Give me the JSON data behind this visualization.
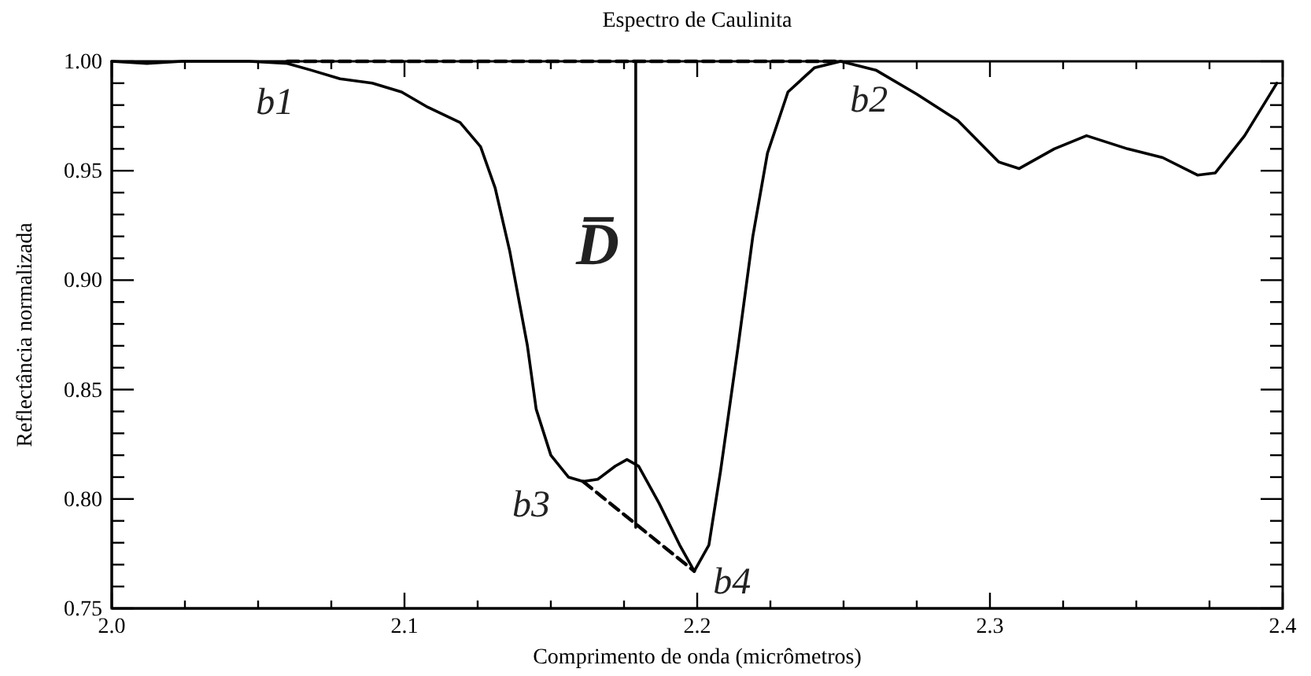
{
  "chart_data": {
    "type": "line",
    "title": "Espectro de Caulinita",
    "xlabel": "Comprimento de onda (micrômetros)",
    "ylabel": "Reflectância normalizada",
    "xlim": [
      2.0,
      2.4
    ],
    "ylim": [
      0.75,
      1.0
    ],
    "xticks": [
      {
        "value": 2.0,
        "label": "2.0"
      },
      {
        "value": 2.025,
        "label": null
      },
      {
        "value": 2.05,
        "label": null
      },
      {
        "value": 2.075,
        "label": null
      },
      {
        "value": 2.1,
        "label": "2.1"
      },
      {
        "value": 2.125,
        "label": null
      },
      {
        "value": 2.15,
        "label": null
      },
      {
        "value": 2.175,
        "label": null
      },
      {
        "value": 2.2,
        "label": "2.2"
      },
      {
        "value": 2.225,
        "label": null
      },
      {
        "value": 2.25,
        "label": null
      },
      {
        "value": 2.275,
        "label": null
      },
      {
        "value": 2.3,
        "label": "2.3"
      },
      {
        "value": 2.325,
        "label": null
      },
      {
        "value": 2.35,
        "label": null
      },
      {
        "value": 2.375,
        "label": null
      },
      {
        "value": 2.4,
        "label": "2.4"
      }
    ],
    "yticks": [
      {
        "value": 0.75,
        "label": "0.75"
      },
      {
        "value": 0.76,
        "label": null
      },
      {
        "value": 0.77,
        "label": null
      },
      {
        "value": 0.78,
        "label": null
      },
      {
        "value": 0.79,
        "label": null
      },
      {
        "value": 0.8,
        "label": "0.80"
      },
      {
        "value": 0.81,
        "label": null
      },
      {
        "value": 0.82,
        "label": null
      },
      {
        "value": 0.83,
        "label": null
      },
      {
        "value": 0.84,
        "label": null
      },
      {
        "value": 0.85,
        "label": "0.85"
      },
      {
        "value": 0.86,
        "label": null
      },
      {
        "value": 0.87,
        "label": null
      },
      {
        "value": 0.88,
        "label": null
      },
      {
        "value": 0.89,
        "label": null
      },
      {
        "value": 0.9,
        "label": "0.90"
      },
      {
        "value": 0.91,
        "label": null
      },
      {
        "value": 0.92,
        "label": null
      },
      {
        "value": 0.93,
        "label": null
      },
      {
        "value": 0.94,
        "label": null
      },
      {
        "value": 0.95,
        "label": "0.95"
      },
      {
        "value": 0.96,
        "label": null
      },
      {
        "value": 0.97,
        "label": null
      },
      {
        "value": 0.98,
        "label": null
      },
      {
        "value": 0.99,
        "label": null
      },
      {
        "value": 1.0,
        "label": "1.00"
      }
    ],
    "grid": false,
    "marker": "none",
    "line_style": "solid",
    "series": [
      {
        "color": "#000000",
        "x": [
          2.0,
          2.012,
          2.024,
          2.047,
          2.06,
          2.068,
          2.078,
          2.089,
          2.099,
          2.108,
          2.119,
          2.126,
          2.131,
          2.136,
          2.142,
          2.145,
          2.15,
          2.156,
          2.161,
          2.166,
          2.172,
          2.176,
          2.18,
          2.187,
          2.194,
          2.199,
          2.204,
          2.208,
          2.214,
          2.219,
          2.224,
          2.231,
          2.24,
          2.249,
          2.261,
          2.275,
          2.289,
          2.303,
          2.31,
          2.322,
          2.333,
          2.347,
          2.359,
          2.371,
          2.377,
          2.387,
          2.398
        ],
        "values": [
          1.0,
          0.999,
          1.0,
          1.0,
          0.999,
          0.996,
          0.992,
          0.99,
          0.986,
          0.979,
          0.972,
          0.961,
          0.942,
          0.913,
          0.87,
          0.841,
          0.82,
          0.81,
          0.808,
          0.809,
          0.815,
          0.818,
          0.815,
          0.798,
          0.779,
          0.767,
          0.779,
          0.813,
          0.87,
          0.92,
          0.958,
          0.986,
          0.997,
          1.0,
          0.996,
          0.985,
          0.973,
          0.954,
          0.951,
          0.96,
          0.966,
          0.96,
          0.956,
          0.948,
          0.949,
          0.966,
          0.99
        ]
      },
      {
        "color": "#000000",
        "line_style": "dashed",
        "x": [
          2.06,
          2.249
        ],
        "values": [
          1.0,
          1.0
        ]
      },
      {
        "color": "#000000",
        "line_style": "dashed",
        "x": [
          2.161,
          2.199
        ],
        "values": [
          0.808,
          0.767
        ]
      },
      {
        "color": "#000000",
        "line_style": "solid",
        "x": [
          2.179,
          2.179
        ],
        "values": [
          1.0,
          0.787
        ]
      }
    ],
    "annotations": [
      {
        "text": "b1",
        "x": 2.06,
        "y": 0.999
      },
      {
        "text": "b2",
        "x": 2.249,
        "y": 1.0
      },
      {
        "text": "b3",
        "x": 2.161,
        "y": 0.808
      },
      {
        "text": "b4",
        "x": 2.199,
        "y": 0.767
      },
      {
        "text": "D̅",
        "x": 2.179,
        "y": 0.9
      }
    ]
  }
}
